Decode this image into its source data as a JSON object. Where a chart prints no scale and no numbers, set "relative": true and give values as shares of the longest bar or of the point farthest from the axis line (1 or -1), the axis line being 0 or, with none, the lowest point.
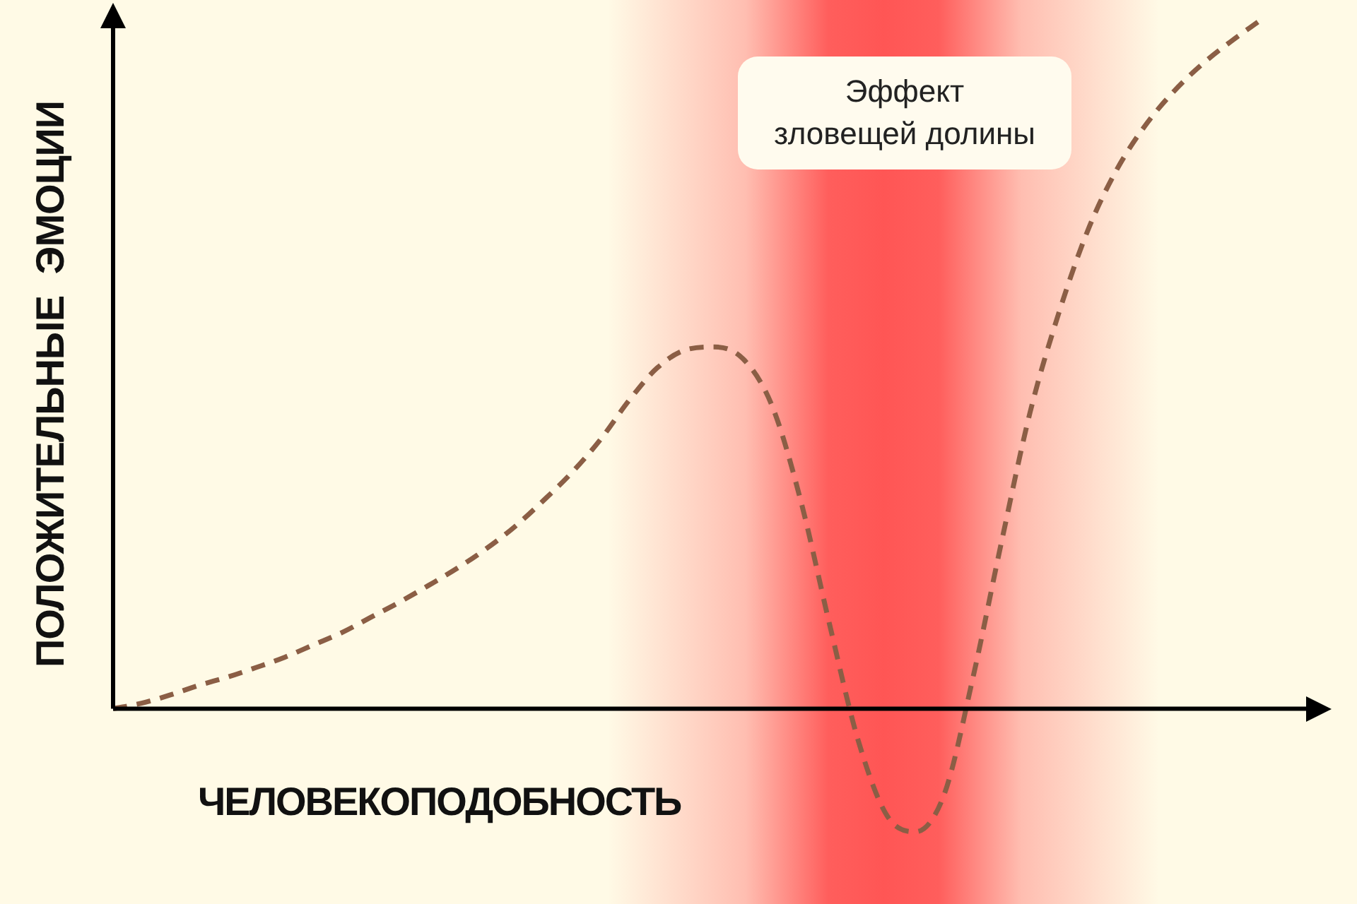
{
  "chart_data": {
    "type": "line",
    "xlabel": "ЧЕЛОВЕКОПОДОБНОСТЬ",
    "ylabel": "ПОЛОЖИТЕЛЬНЫЕ ЭМОЦИИ",
    "relative": true,
    "categories": [
      null,
      null,
      null,
      null,
      null,
      null,
      null,
      null,
      null,
      null,
      null,
      null,
      null,
      null,
      null,
      null,
      null,
      null,
      null,
      null,
      null,
      null,
      null,
      null,
      null,
      null,
      null,
      null,
      null,
      null,
      null,
      null,
      null,
      null,
      null,
      null,
      null,
      null,
      null,
      null,
      null
    ],
    "series": [
      {
        "color": "#8b5e45",
        "values": [
          0,
          0.008,
          0.02,
          0.034,
          0.046,
          0.06,
          0.075,
          0.093,
          0.111,
          0.133,
          0.155,
          0.179,
          0.204,
          0.232,
          0.264,
          0.302,
          0.343,
          0.391,
          0.448,
          0.496,
          0.522,
          0.526,
          0.508,
          0.44,
          0.302,
          0.123,
          -0.046,
          -0.155,
          -0.179,
          -0.125,
          0.044,
          0.242,
          0.431,
          0.575,
          0.694,
          0.782,
          0.847,
          0.897,
          0.937,
          0.97,
          1
        ]
      }
    ],
    "annotations": [
      "Эффект зловещей долины"
    ],
    "grid": false,
    "legend": false,
    "marker": "none",
    "line_style": "dashed"
  }
}
